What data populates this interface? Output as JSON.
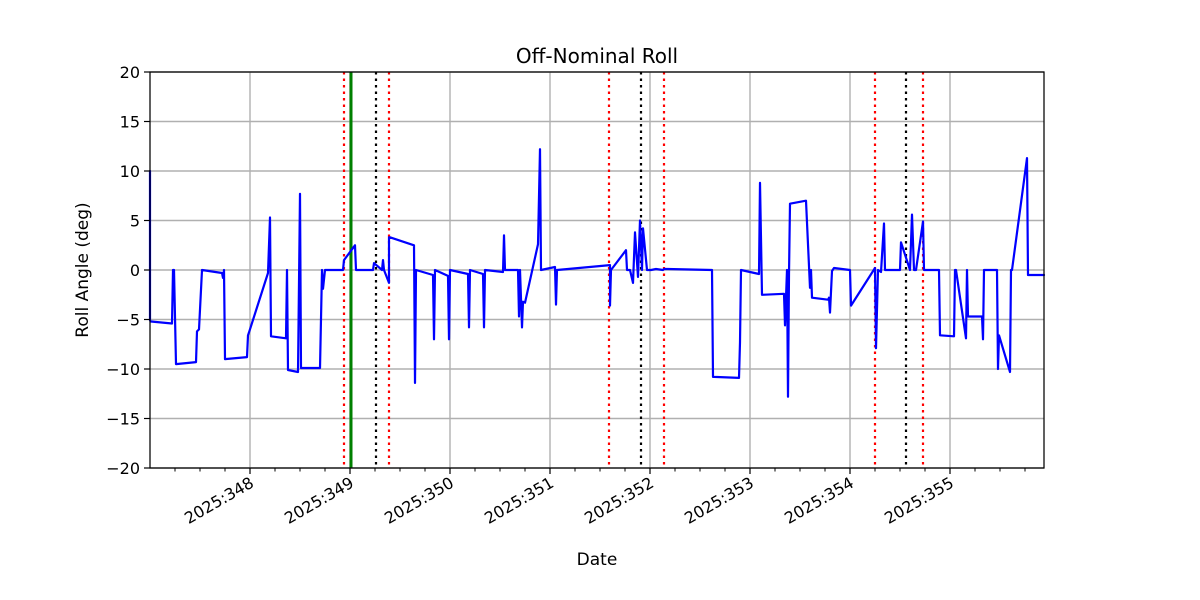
{
  "chart_data": {
    "type": "line",
    "title": "Off-Nominal Roll",
    "xlabel": "Date",
    "ylabel": "Roll Angle (deg)",
    "xlim": [
      347.0,
      355.94
    ],
    "ylim": [
      -20,
      20
    ],
    "grid": true,
    "x_ticks": [
      {
        "value": 348,
        "label": "2025:348"
      },
      {
        "value": 349,
        "label": "2025:349"
      },
      {
        "value": 350,
        "label": "2025:350"
      },
      {
        "value": 351,
        "label": "2025:351"
      },
      {
        "value": 352,
        "label": "2025:352"
      },
      {
        "value": 353,
        "label": "2025:353"
      },
      {
        "value": 354,
        "label": "2025:354"
      },
      {
        "value": 355,
        "label": "2025:355"
      }
    ],
    "x_minor_ticks": [
      347.25,
      347.5,
      347.75,
      348.25,
      348.5,
      348.75,
      349.25,
      349.5,
      349.75,
      350.25,
      350.5,
      350.75,
      351.25,
      351.5,
      351.75,
      352.25,
      352.5,
      352.75,
      353.25,
      353.5,
      353.75,
      354.25,
      354.5,
      354.75,
      355.25,
      355.5,
      355.75
    ],
    "y_ticks": [
      {
        "value": 20,
        "label": "20"
      },
      {
        "value": 15,
        "label": "15"
      },
      {
        "value": 10,
        "label": "10"
      },
      {
        "value": 5,
        "label": "5"
      },
      {
        "value": 0,
        "label": "0"
      },
      {
        "value": -5,
        "label": "−5"
      },
      {
        "value": -10,
        "label": "−10"
      },
      {
        "value": -15,
        "label": "−15"
      },
      {
        "value": -20,
        "label": "−20"
      }
    ],
    "red_dotted_lines": [
      348.94,
      349.39,
      351.59,
      352.14,
      354.25,
      354.73
    ],
    "black_dotted_lines": [
      349.26,
      351.91,
      354.56
    ],
    "green_line": 349.01,
    "colors": {
      "series": "#0000ff",
      "red": "#ff0000",
      "black": "#000000",
      "green": "#008000",
      "grid": "#b0b0b0"
    },
    "series": [
      {
        "name": "Roll Angle",
        "x": [
          347.0,
          347.0,
          347.01,
          347.22,
          347.23,
          347.24,
          347.26,
          347.46,
          347.47,
          347.49,
          347.52,
          347.72,
          347.73,
          347.74,
          347.75,
          347.97,
          347.98,
          347.99,
          348.18,
          348.2,
          348.21,
          348.36,
          348.37,
          348.38,
          348.48,
          348.5,
          348.51,
          348.7,
          348.72,
          348.73,
          348.75,
          348.76,
          348.93,
          348.94,
          349.05,
          349.06,
          349.07,
          349.23,
          349.24,
          349.32,
          349.33,
          349.34,
          349.39,
          349.39,
          349.4,
          349.64,
          349.65,
          349.66,
          349.83,
          349.84,
          349.85,
          349.98,
          349.99,
          350.0,
          350.18,
          350.19,
          350.2,
          350.33,
          350.34,
          350.35,
          350.53,
          350.54,
          350.55,
          350.68,
          350.69,
          350.7,
          350.72,
          350.73,
          350.75,
          350.88,
          350.9,
          350.91,
          351.05,
          351.06,
          351.07,
          351.6,
          351.6,
          351.61,
          351.76,
          351.77,
          351.8,
          351.83,
          351.85,
          351.88,
          351.9,
          351.92,
          351.93,
          351.97,
          351.99,
          352.01,
          352.06,
          352.13,
          352.14,
          352.18,
          352.62,
          352.63,
          352.64,
          352.89,
          352.9,
          352.91,
          353.09,
          353.1,
          353.12,
          353.34,
          353.35,
          353.37,
          353.38,
          353.39,
          353.4,
          353.56,
          353.6,
          353.61,
          353.62,
          353.78,
          353.79,
          353.8,
          353.82,
          353.84,
          354.0,
          354.01,
          354.25,
          354.26,
          354.28,
          354.31,
          354.34,
          354.35,
          354.37,
          354.5,
          354.51,
          354.6,
          354.62,
          354.64,
          354.65,
          354.66,
          354.73,
          354.74,
          354.89,
          354.9,
          355.04,
          355.05,
          355.06,
          355.16,
          355.17,
          355.18,
          355.32,
          355.33,
          355.34,
          355.47,
          355.48,
          355.49,
          355.6,
          355.61,
          355.62,
          355.77,
          355.78,
          355.8,
          355.94
        ],
        "y": [
          10.0,
          -5.1,
          -5.2,
          -5.4,
          0.0,
          0.0,
          -9.5,
          -9.3,
          -6.2,
          -6.0,
          0.0,
          -0.3,
          -0.8,
          0.0,
          -9.0,
          -8.8,
          -6.6,
          -6.3,
          -0.3,
          5.3,
          -6.7,
          -6.9,
          0.0,
          -10.1,
          -10.3,
          7.7,
          -9.9,
          -9.9,
          0.0,
          -1.9,
          0.0,
          0.0,
          0.0,
          1.0,
          2.5,
          0.0,
          0.0,
          0.0,
          0.7,
          0.0,
          1.0,
          0.0,
          -1.3,
          3.3,
          3.3,
          2.5,
          -11.4,
          0.0,
          -0.5,
          -7.0,
          0.0,
          -0.6,
          -7.0,
          0.0,
          -0.4,
          -5.8,
          0.0,
          -0.4,
          -5.8,
          0.0,
          -0.2,
          3.5,
          0.0,
          0.0,
          -4.7,
          0.0,
          -5.8,
          -3.2,
          -3.3,
          2.6,
          12.2,
          0.0,
          0.3,
          -3.5,
          0.0,
          0.5,
          -3.6,
          0.0,
          2.0,
          0.0,
          0.0,
          -1.3,
          3.8,
          -0.7,
          5.0,
          0.0,
          4.2,
          0.0,
          0.0,
          0.0,
          0.1,
          0.0,
          0.1,
          0.1,
          0.0,
          -10.8,
          -10.8,
          -10.9,
          -7.3,
          0.0,
          -0.4,
          8.8,
          -2.5,
          -2.4,
          -5.6,
          0.0,
          -12.8,
          -0.4,
          6.7,
          7.0,
          -1.8,
          0.0,
          -2.8,
          -3.0,
          -2.8,
          -4.3,
          -0.1,
          0.2,
          0.0,
          -3.6,
          0.2,
          -7.9,
          0.0,
          -0.2,
          4.7,
          0.0,
          0.0,
          0.0,
          2.8,
          0.0,
          5.6,
          0.0,
          0.0,
          0.0,
          4.9,
          0.0,
          0.0,
          -6.6,
          -6.7,
          0.0,
          0.0,
          -6.9,
          0.0,
          -4.7,
          -4.7,
          -7.0,
          0.0,
          0.0,
          -10.0,
          -6.6,
          -10.3,
          0.0,
          0.0,
          11.3,
          -0.5,
          -0.5,
          -0.5
        ]
      }
    ]
  }
}
